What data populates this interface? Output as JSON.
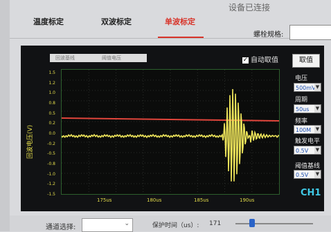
{
  "window": {
    "title": "设备已连接"
  },
  "tabs": [
    {
      "label": "温度标定",
      "active": false
    },
    {
      "label": "双波标定",
      "active": false
    },
    {
      "label": "单波标定",
      "active": true
    }
  ],
  "bolt_spec": {
    "label": "螺栓规格:",
    "value": ""
  },
  "legend": {
    "item1": "回波基线",
    "item2": "阈值电压"
  },
  "auto_take": {
    "label": "自动取值",
    "checked": true
  },
  "take_button": "取值",
  "controls": {
    "voltage": {
      "label": "电压",
      "value": "500mV"
    },
    "period": {
      "label": "周期",
      "value": "50us"
    },
    "frequency": {
      "label": "频率",
      "value": "100M"
    },
    "trigger": {
      "label": "触发电平",
      "value": "0.5V"
    },
    "threshold": {
      "label": "阈值基线",
      "value": "0.5V"
    }
  },
  "channel_badge": "CH1",
  "axis": {
    "ylabel": "回波电压(V)",
    "yticks": [
      "1.5",
      "1.2",
      "1.0",
      "0.8",
      "0.5",
      "0.2",
      "0.0",
      "-0.2",
      "-0.5",
      "-0.8",
      "-1.0",
      "-1.2",
      "-1.5"
    ],
    "xticks": [
      "175us",
      "180us",
      "185us",
      "190us"
    ]
  },
  "bottom": {
    "channel_label": "通道选择:",
    "channel_value": "",
    "guard_label": "保护时间（us）:",
    "guard_value": "171"
  },
  "colors": {
    "threshold_line": "#e2463c",
    "waveform": "#ece35a",
    "accent": "#d8342a",
    "channel": "#3fc9e6"
  }
}
